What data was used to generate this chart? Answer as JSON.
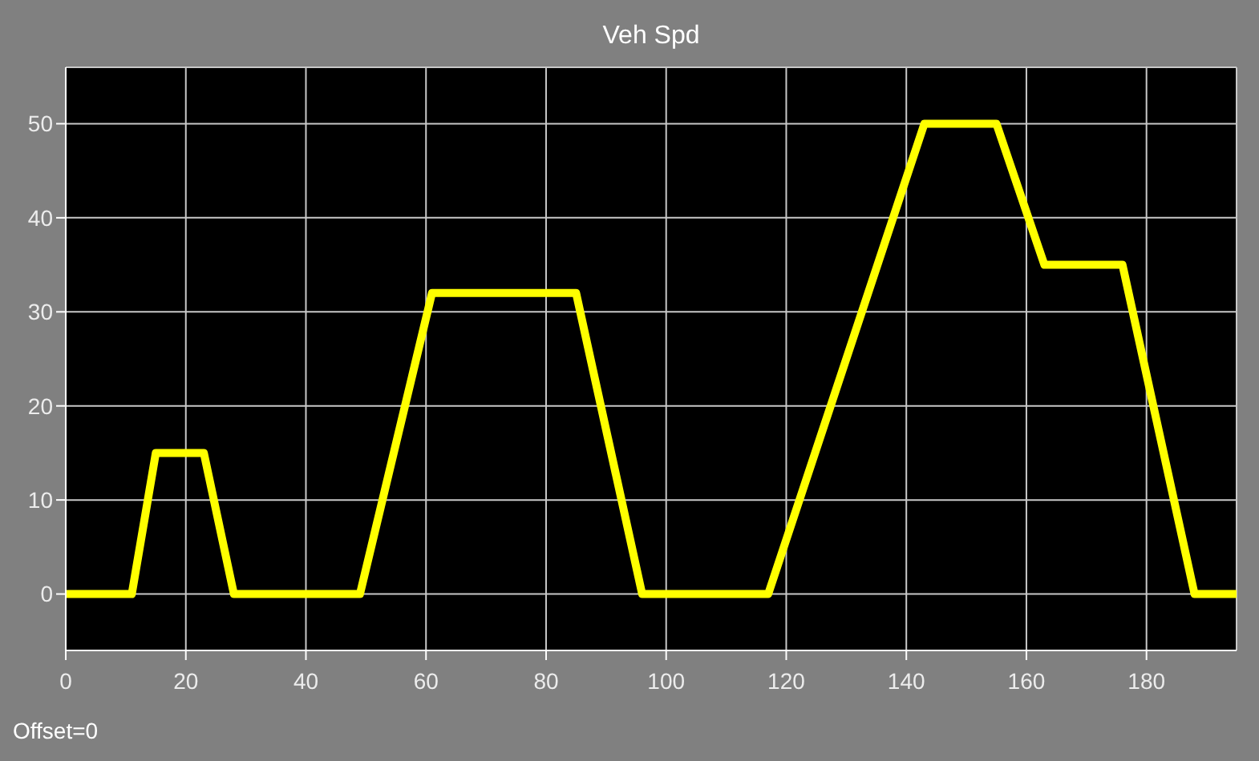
{
  "chart_data": {
    "type": "line",
    "title": "Veh Spd",
    "annotations": [
      "Offset=0"
    ],
    "x": [
      0,
      11,
      15,
      23,
      28,
      49,
      61,
      85,
      96,
      117,
      143,
      155,
      163,
      176,
      188,
      195
    ],
    "series": [
      {
        "color": "#ffff00",
        "values": [
          0,
          0,
          15,
          15,
          0,
          0,
          32,
          32,
          0,
          0,
          50,
          50,
          35,
          35,
          0,
          0
        ]
      }
    ],
    "xlim": [
      0,
      195
    ],
    "xticks": [
      0,
      20,
      40,
      60,
      80,
      100,
      120,
      140,
      160,
      180
    ],
    "ylim": [
      -6,
      56
    ],
    "yticks": [
      0,
      10,
      20,
      30,
      40,
      50
    ],
    "grid": true,
    "legend": false,
    "marker": "none",
    "line_style": "solid"
  }
}
